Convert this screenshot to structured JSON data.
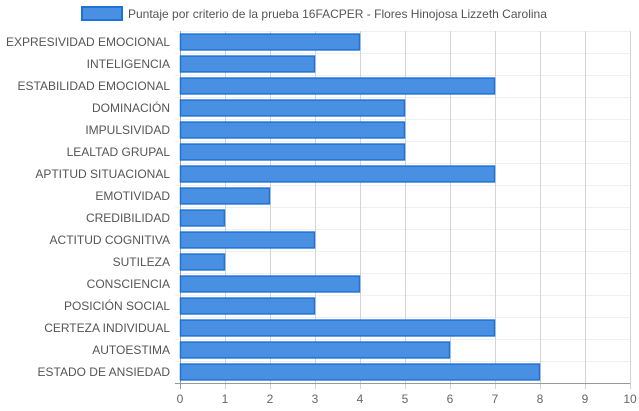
{
  "chart_data": {
    "type": "bar",
    "orientation": "horizontal",
    "legend": {
      "position": "top",
      "series_name": "Puntaje por criterio de la prueba 16FACPER - Flores Hinojosa Lizzeth Carolina"
    },
    "categories": [
      "EXPRESIVIDAD EMOCIONAL",
      "INTELIGENCIA",
      "ESTABILIDAD EMOCIONAL",
      "DOMINACIÓN",
      "IMPULSIVIDAD",
      "LEALTAD GRUPAL",
      "APTITUD SITUACIONAL",
      "EMOTIVIDAD",
      "CREDIBILIDAD",
      "ACTITUD COGNITIVA",
      "SUTILEZA",
      "CONSCIENCIA",
      "POSICIÓN SOCIAL",
      "CERTEZA INDIVIDUAL",
      "AUTOESTIMA",
      "ESTADO DE ANSIEDAD"
    ],
    "series": [
      {
        "name": "Puntaje por criterio de la prueba 16FACPER - Flores Hinojosa Lizzeth Carolina",
        "values": [
          4,
          3,
          7,
          5,
          5,
          5,
          7,
          2,
          1,
          3,
          1,
          4,
          3,
          7,
          6,
          8
        ]
      }
    ],
    "xlim": [
      0,
      10
    ],
    "xticks": [
      "0",
      "1",
      "2",
      "3",
      "4",
      "5",
      "6",
      "7",
      "8",
      "9",
      "10"
    ],
    "grid": true,
    "colors": {
      "bar_fill": "#4a90e2",
      "bar_stroke": "#1e73d6",
      "grid": "#d4d4d4",
      "axis": "#999999"
    }
  }
}
